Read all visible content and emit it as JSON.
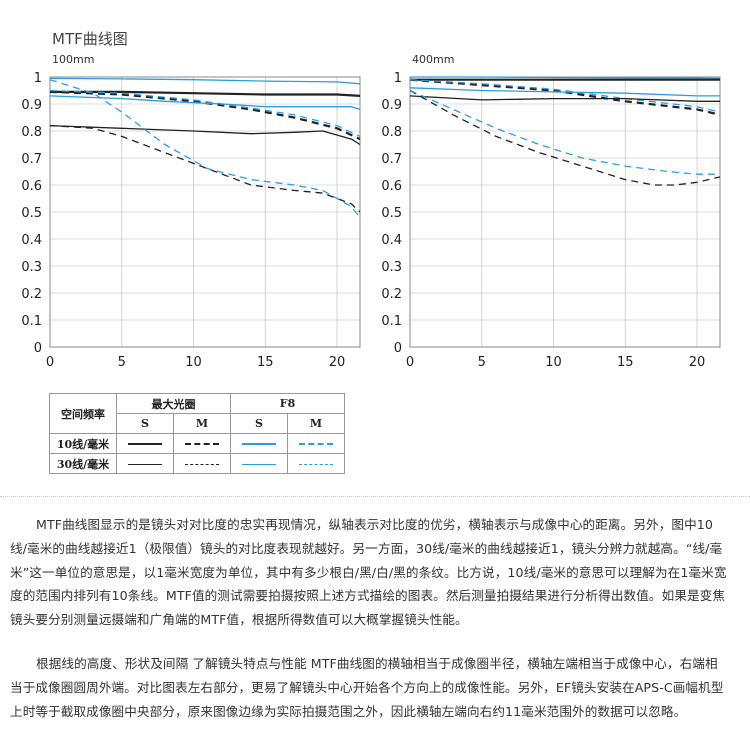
{
  "heading": "MTF曲线图",
  "colors": {
    "black": "#222222",
    "blue": "#2a9ee0"
  },
  "legend": {
    "row_header": "空间频率",
    "group1": "最大光圈",
    "group2": "F8",
    "s": "S",
    "m": "M",
    "rows": [
      "10线/毫米",
      "30线/毫米"
    ]
  },
  "paragraphs": [
    "MTF曲线图显示的是镜头对对比度的忠实再现情况，纵轴表示对比度的优劣，横轴表示与成像中心的距离。另外，图中10线/毫米的曲线越接近1（极限值）镜头的对比度表现就越好。另一方面，30线/毫米的曲线越接近1，镜头分辨力就越高。“线/毫米”这一单位的意思是，以1毫米宽度为单位，其中有多少根白/黑/白/黑的条纹。比方说，10线/毫米的意思可以理解为在1毫米宽度的范围内排列有10条线。MTF值的测试需要拍摄按照上述方式描绘的图表。然后测量拍摄结果进行分析得出数值。如果是变焦镜头要分别测量远摄端和广角端的MTF值，根据所得数值可以大概掌握镜头性能。",
    "根据线的高度、形状及间隔 了解镜头特点与性能 MTF曲线图的横轴相当于成像圈半径，横轴左端相当于成像中心，右端相当于成像圈圆周外端。对比图表左右部分，更易了解镜头中心开始各个方向上的成像性能。另外，EF镜头安装在APS-C画幅机型上时等于截取成像圈中央部分，原来图像边缘为实际拍摄范围之外，因此横轴左端向右约11毫米范围外的数据可以忽略。"
  ],
  "chart_data": [
    {
      "type": "line",
      "title": "100mm",
      "xlabel": "",
      "ylabel": "",
      "xlim": [
        0,
        21.6
      ],
      "ylim": [
        0,
        1
      ],
      "xticks": [
        "0",
        "5",
        "10",
        "15",
        "20"
      ],
      "yticks": [
        "0",
        "0.1",
        "0.2",
        "0.3",
        "0.4",
        "0.5",
        "0.6",
        "0.7",
        "0.8",
        "0.9",
        "1"
      ],
      "grid": true,
      "series": [
        {
          "color": "blue",
          "dash": false,
          "weight": "thin",
          "x": [
            0,
            5,
            10,
            15,
            20,
            21.6
          ],
          "y": [
            0.995,
            0.993,
            0.99,
            0.985,
            0.982,
            0.975
          ]
        },
        {
          "color": "black",
          "dash": false,
          "weight": "thick",
          "x": [
            0,
            5,
            10,
            15,
            20,
            21.6
          ],
          "y": [
            0.945,
            0.945,
            0.94,
            0.935,
            0.935,
            0.93
          ]
        },
        {
          "color": "black",
          "dash": true,
          "weight": "thick",
          "x": [
            0,
            5,
            10,
            14,
            17,
            20,
            21.6
          ],
          "y": [
            0.945,
            0.935,
            0.91,
            0.88,
            0.85,
            0.81,
            0.77
          ]
        },
        {
          "color": "blue",
          "dash": true,
          "weight": "thin",
          "x": [
            0,
            5,
            10,
            14,
            17,
            20,
            21.6
          ],
          "y": [
            0.95,
            0.94,
            0.915,
            0.885,
            0.86,
            0.82,
            0.78
          ]
        },
        {
          "color": "blue",
          "dash": false,
          "weight": "thin",
          "x": [
            0,
            5,
            8,
            12,
            15,
            18,
            21,
            21.6
          ],
          "y": [
            0.93,
            0.92,
            0.91,
            0.9,
            0.89,
            0.89,
            0.89,
            0.88
          ]
        },
        {
          "color": "black",
          "dash": false,
          "weight": "thin",
          "x": [
            0,
            5,
            10,
            14,
            17,
            19,
            21,
            21.6
          ],
          "y": [
            0.82,
            0.81,
            0.8,
            0.79,
            0.795,
            0.8,
            0.77,
            0.75
          ]
        },
        {
          "color": "black",
          "dash": true,
          "weight": "thin",
          "x": [
            0,
            3,
            5,
            8,
            11,
            14,
            17,
            19,
            21,
            21.6
          ],
          "y": [
            0.82,
            0.81,
            0.78,
            0.72,
            0.66,
            0.6,
            0.58,
            0.57,
            0.53,
            0.5
          ]
        },
        {
          "color": "blue",
          "dash": true,
          "weight": "thin",
          "x": [
            0,
            3,
            5,
            8,
            11,
            14,
            17,
            19,
            21,
            21.6
          ],
          "y": [
            0.99,
            0.94,
            0.87,
            0.75,
            0.66,
            0.62,
            0.6,
            0.58,
            0.52,
            0.48
          ]
        }
      ]
    },
    {
      "type": "line",
      "title": "400mm",
      "xlabel": "",
      "ylabel": "",
      "xlim": [
        0,
        21.6
      ],
      "ylim": [
        0,
        1
      ],
      "xticks": [
        "0",
        "5",
        "10",
        "15",
        "20"
      ],
      "yticks": [
        "0",
        "0.1",
        "0.2",
        "0.3",
        "0.4",
        "0.5",
        "0.6",
        "0.7",
        "0.8",
        "0.9",
        "1"
      ],
      "grid": true,
      "series": [
        {
          "color": "blue",
          "dash": false,
          "weight": "thin",
          "x": [
            0,
            5,
            10,
            15,
            20,
            21.6
          ],
          "y": [
            1.0,
            1.0,
            0.998,
            0.997,
            0.996,
            0.995
          ]
        },
        {
          "color": "black",
          "dash": false,
          "weight": "thick",
          "x": [
            0,
            5,
            10,
            15,
            20,
            21.6
          ],
          "y": [
            0.99,
            0.99,
            0.99,
            0.99,
            0.99,
            0.99
          ]
        },
        {
          "color": "black",
          "dash": true,
          "weight": "thick",
          "x": [
            0,
            5,
            10,
            15,
            20,
            21.6
          ],
          "y": [
            0.99,
            0.97,
            0.95,
            0.91,
            0.88,
            0.86
          ]
        },
        {
          "color": "blue",
          "dash": true,
          "weight": "thin",
          "x": [
            0,
            5,
            10,
            15,
            20,
            21.6
          ],
          "y": [
            0.99,
            0.975,
            0.955,
            0.92,
            0.89,
            0.87
          ]
        },
        {
          "color": "blue",
          "dash": false,
          "weight": "thin",
          "x": [
            0,
            5,
            10,
            15,
            20,
            21.6
          ],
          "y": [
            0.96,
            0.95,
            0.945,
            0.94,
            0.93,
            0.93
          ]
        },
        {
          "color": "black",
          "dash": false,
          "weight": "thin",
          "x": [
            0,
            5,
            10,
            15,
            20,
            21.6
          ],
          "y": [
            0.93,
            0.915,
            0.92,
            0.92,
            0.91,
            0.91
          ]
        },
        {
          "color": "black",
          "dash": true,
          "weight": "thin",
          "x": [
            0,
            3,
            6,
            9,
            12,
            15,
            17,
            18.5,
            20,
            21.6
          ],
          "y": [
            0.95,
            0.86,
            0.78,
            0.72,
            0.67,
            0.62,
            0.6,
            0.6,
            0.61,
            0.63
          ]
        },
        {
          "color": "blue",
          "dash": true,
          "weight": "thin",
          "x": [
            0,
            3,
            6,
            9,
            12,
            15,
            18,
            20,
            21.6
          ],
          "y": [
            0.95,
            0.88,
            0.81,
            0.75,
            0.7,
            0.67,
            0.65,
            0.64,
            0.64
          ]
        }
      ]
    }
  ]
}
